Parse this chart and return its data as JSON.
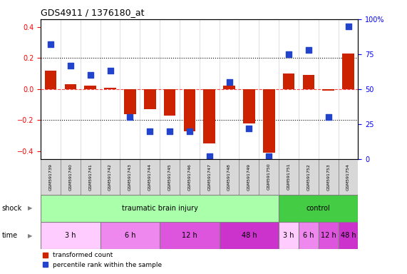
{
  "title": "GDS4911 / 1376180_at",
  "samples": [
    "GSM591739",
    "GSM591740",
    "GSM591741",
    "GSM591742",
    "GSM591743",
    "GSM591744",
    "GSM591745",
    "GSM591746",
    "GSM591747",
    "GSM591748",
    "GSM591749",
    "GSM591750",
    "GSM591751",
    "GSM591752",
    "GSM591753",
    "GSM591754"
  ],
  "red_values": [
    0.12,
    0.03,
    0.02,
    0.01,
    -0.16,
    -0.13,
    -0.17,
    -0.27,
    -0.35,
    0.02,
    -0.22,
    -0.41,
    0.1,
    0.09,
    -0.01,
    0.23
  ],
  "blue_values_pct": [
    82,
    67,
    60,
    63,
    30,
    20,
    20,
    20,
    2,
    55,
    22,
    2,
    75,
    78,
    30,
    95
  ],
  "shock_groups": [
    {
      "label": "traumatic brain injury",
      "start": 0,
      "end": 11,
      "color": "#aaffaa"
    },
    {
      "label": "control",
      "start": 12,
      "end": 15,
      "color": "#44cc44"
    }
  ],
  "time_groups": [
    {
      "label": "3 h",
      "start": 0,
      "end": 2,
      "color": "#ffccff"
    },
    {
      "label": "6 h",
      "start": 3,
      "end": 5,
      "color": "#ee88ee"
    },
    {
      "label": "12 h",
      "start": 6,
      "end": 8,
      "color": "#dd55dd"
    },
    {
      "label": "48 h",
      "start": 9,
      "end": 11,
      "color": "#cc33cc"
    },
    {
      "label": "3 h",
      "start": 12,
      "end": 12,
      "color": "#ffccff"
    },
    {
      "label": "6 h",
      "start": 13,
      "end": 13,
      "color": "#ee88ee"
    },
    {
      "label": "12 h",
      "start": 14,
      "end": 14,
      "color": "#dd55dd"
    },
    {
      "label": "48 h",
      "start": 15,
      "end": 15,
      "color": "#cc33cc"
    }
  ],
  "ylim_left": [
    -0.45,
    0.45
  ],
  "ylim_right": [
    0,
    100
  ],
  "yticks_left": [
    -0.4,
    -0.2,
    0.0,
    0.2,
    0.4
  ],
  "yticks_right": [
    0,
    25,
    50,
    75,
    100
  ],
  "red_color": "#cc2200",
  "blue_color": "#2244cc",
  "bar_width": 0.6,
  "blue_marker_size": 30,
  "dotted_lines_black": [
    -0.2,
    0.2
  ],
  "dotted_line_red": 0.0,
  "red_dotted_color": "#ff4444",
  "black_dotted_color": "#000000",
  "legend_labels": [
    "transformed count",
    "percentile rank within the sample"
  ]
}
